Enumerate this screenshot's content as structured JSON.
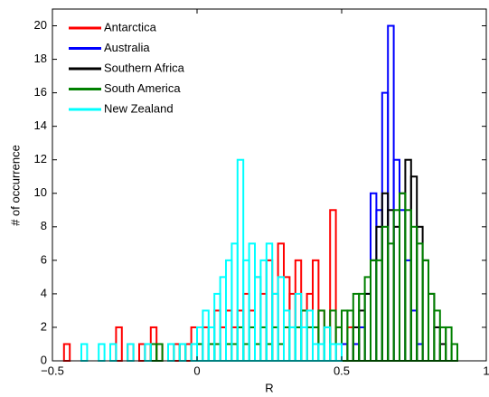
{
  "chart_data": {
    "type": "histogram",
    "xlabel": "R",
    "ylabel": "# of occurrence",
    "xlim": [
      -0.5,
      1
    ],
    "ylim": [
      0,
      21
    ],
    "xticks": [
      {
        "value": -0.5,
        "label": "−0.5"
      },
      0,
      0.5,
      1
    ],
    "yticks": [
      0,
      2,
      4,
      6,
      8,
      10,
      12,
      14,
      16,
      18,
      20
    ],
    "legend": "upper left",
    "bins": [
      -0.5,
      -0.48,
      -0.46,
      -0.44,
      -0.42,
      -0.4,
      -0.38,
      -0.36,
      -0.34,
      -0.32,
      -0.3,
      -0.28,
      -0.26,
      -0.24,
      -0.22,
      -0.2,
      -0.18,
      -0.16,
      -0.14,
      -0.12,
      -0.1,
      -0.08,
      -0.06,
      -0.04,
      -0.02,
      0,
      0.02,
      0.04,
      0.06,
      0.08,
      0.1,
      0.12,
      0.14,
      0.16,
      0.18,
      0.2,
      0.22,
      0.24,
      0.26,
      0.28,
      0.3,
      0.32,
      0.34,
      0.36,
      0.38,
      0.4,
      0.42,
      0.44,
      0.46,
      0.48,
      0.5,
      0.52,
      0.54,
      0.56,
      0.58,
      0.6,
      0.62,
      0.64,
      0.66,
      0.68,
      0.7,
      0.72,
      0.74,
      0.76,
      0.78,
      0.8,
      0.82,
      0.84,
      0.86,
      0.88,
      0.9,
      0.92,
      0.94,
      0.96,
      0.98,
      1
    ],
    "series": [
      {
        "name": "Antarctica",
        "color": "#ff0000",
        "values": [
          0,
          0,
          1,
          0,
          0,
          0,
          0,
          0,
          0,
          0,
          1,
          2,
          0,
          1,
          0,
          1,
          1,
          2,
          1,
          0,
          0,
          1,
          0,
          1,
          2,
          1,
          2,
          1,
          3,
          2,
          3,
          2,
          3,
          4,
          3,
          5,
          4,
          6,
          4,
          7,
          5,
          4,
          6,
          3,
          4,
          6,
          3,
          2,
          9,
          2,
          1,
          2,
          1,
          0,
          0,
          0,
          0,
          0,
          0,
          0,
          0,
          0,
          0,
          0,
          0,
          0,
          0,
          0,
          0,
          0,
          0,
          0,
          0,
          0,
          0
        ]
      },
      {
        "name": "Australia",
        "color": "#0000ff",
        "values": [
          0,
          0,
          0,
          0,
          0,
          0,
          0,
          0,
          0,
          0,
          0,
          0,
          0,
          0,
          0,
          0,
          0,
          0,
          0,
          0,
          0,
          0,
          0,
          0,
          0,
          0,
          0,
          0,
          0,
          0,
          0,
          0,
          0,
          0,
          0,
          0,
          0,
          0,
          0,
          0,
          0,
          0,
          0,
          0,
          0,
          0,
          0,
          0,
          0,
          0,
          1,
          0,
          1,
          2,
          4,
          10,
          9,
          16,
          20,
          12,
          9,
          6,
          3,
          1,
          0,
          0,
          0,
          0,
          0,
          0,
          0,
          0,
          0,
          0,
          0
        ]
      },
      {
        "name": "Southern Africa",
        "color": "#000000",
        "values": [
          0,
          0,
          0,
          0,
          0,
          0,
          0,
          0,
          0,
          0,
          0,
          0,
          0,
          0,
          0,
          0,
          0,
          0,
          0,
          0,
          0,
          0,
          0,
          0,
          0,
          0,
          0,
          0,
          0,
          0,
          0,
          0,
          0,
          0,
          0,
          0,
          0,
          0,
          0,
          0,
          0,
          0,
          0,
          0,
          0,
          0,
          0,
          0,
          0,
          0,
          0,
          0,
          2,
          3,
          4,
          6,
          8,
          10,
          9,
          8,
          10,
          12,
          11,
          8,
          6,
          4,
          2,
          1,
          0,
          0,
          0,
          0,
          0,
          0,
          0
        ]
      },
      {
        "name": "South America",
        "color": "#008000",
        "values": [
          0,
          0,
          0,
          0,
          0,
          0,
          0,
          0,
          0,
          0,
          0,
          0,
          0,
          0,
          0,
          0,
          0,
          1,
          1,
          0,
          1,
          0,
          1,
          0,
          1,
          1,
          0,
          1,
          1,
          0,
          1,
          1,
          2,
          1,
          2,
          1,
          2,
          1,
          2,
          1,
          2,
          2,
          2,
          3,
          2,
          2,
          3,
          2,
          3,
          2,
          3,
          3,
          4,
          4,
          5,
          6,
          6,
          8,
          7,
          9,
          10,
          9,
          8,
          7,
          6,
          4,
          3,
          2,
          2,
          1,
          0,
          0,
          0,
          0,
          0
        ]
      },
      {
        "name": "New Zealand",
        "color": "#00ffff",
        "values": [
          0,
          0,
          0,
          0,
          0,
          1,
          0,
          0,
          1,
          0,
          1,
          0,
          0,
          1,
          0,
          0,
          1,
          0,
          0,
          0,
          1,
          0,
          1,
          0,
          1,
          2,
          3,
          2,
          4,
          5,
          6,
          7,
          12,
          6,
          7,
          5,
          6,
          7,
          4,
          5,
          3,
          2,
          4,
          2,
          3,
          1,
          1,
          2,
          1,
          1,
          0,
          0,
          0,
          0,
          0,
          0,
          0,
          0,
          0,
          0,
          0,
          0,
          0,
          0,
          0,
          0,
          0,
          0,
          0,
          0,
          0,
          0,
          0,
          0,
          0
        ]
      }
    ]
  }
}
